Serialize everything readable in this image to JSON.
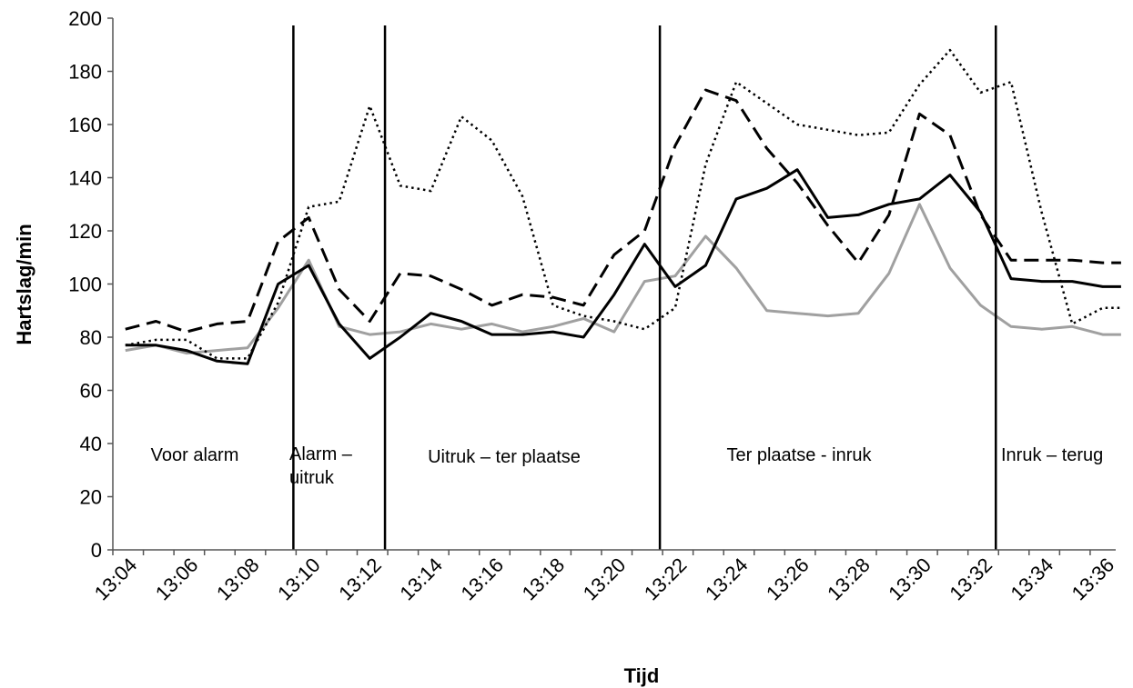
{
  "chart_data": {
    "type": "line",
    "title": "",
    "xlabel": "Tijd",
    "ylabel": "Hartslag/min",
    "ylim": [
      0,
      200
    ],
    "yticks": [
      0,
      20,
      40,
      60,
      80,
      100,
      120,
      140,
      160,
      180,
      200
    ],
    "x_tick_labels": [
      "13:04",
      "13:06",
      "13:08",
      "13:10",
      "13:12",
      "13:14",
      "13:16",
      "13:18",
      "13:20",
      "13:22",
      "13:24",
      "13:26",
      "13:28",
      "13:30",
      "13:32",
      "13:34",
      "13:36"
    ],
    "x": [
      "13:04",
      "13:05",
      "13:06",
      "13:07",
      "13:08",
      "13:09",
      "13:10",
      "13:11",
      "13:12",
      "13:13",
      "13:14",
      "13:15",
      "13:16",
      "13:17",
      "13:18",
      "13:19",
      "13:20",
      "13:21",
      "13:22",
      "13:23",
      "13:24",
      "13:25",
      "13:26",
      "13:27",
      "13:28",
      "13:29",
      "13:30",
      "13:31",
      "13:32",
      "13:33",
      "13:34",
      "13:35",
      "13:36",
      "13:36.6"
    ],
    "grid": false,
    "legend": "none",
    "series": [
      {
        "style": "solid-black",
        "color": "#000000",
        "values": [
          77,
          77,
          75,
          71,
          70,
          100,
          107,
          85,
          72,
          80,
          89,
          86,
          81,
          81,
          82,
          80,
          96,
          115,
          99,
          107,
          132,
          136,
          143,
          125,
          126,
          130,
          132,
          141,
          127,
          102,
          101,
          101,
          99,
          99
        ]
      },
      {
        "style": "solid-gray",
        "color": "#a0a0a0",
        "values": [
          75,
          77,
          74,
          75,
          76,
          91,
          109,
          84,
          81,
          82,
          85,
          83,
          85,
          82,
          84,
          87,
          82,
          101,
          103,
          118,
          106,
          90,
          89,
          88,
          89,
          104,
          130,
          106,
          92,
          84,
          83,
          84,
          81,
          81
        ]
      },
      {
        "style": "dashed-black",
        "color": "#000000",
        "values": [
          83,
          86,
          82,
          85,
          86,
          116,
          125,
          98,
          86,
          104,
          103,
          98,
          92,
          96,
          95,
          92,
          111,
          120,
          152,
          173,
          169,
          151,
          138,
          122,
          108,
          126,
          164,
          156,
          126,
          109,
          109,
          109,
          108,
          108
        ]
      },
      {
        "style": "dotted-black",
        "color": "#000000",
        "values": [
          77,
          79,
          79,
          72,
          72,
          93,
          129,
          131,
          167,
          137,
          135,
          163,
          154,
          133,
          92,
          88,
          86,
          83,
          91,
          145,
          176,
          168,
          160,
          158,
          156,
          157,
          175,
          188,
          172,
          176,
          127,
          85,
          91,
          91
        ]
      }
    ],
    "phase_boundaries": [
      "13:09.5",
      "13:12.5",
      "13:21.5",
      "13:32.5"
    ],
    "phases": [
      {
        "label_lines": [
          "Voor alarm"
        ]
      },
      {
        "label_lines": [
          "Alarm –",
          "uitruk"
        ]
      },
      {
        "label_lines": [
          "Uitruk – ter plaatse"
        ]
      },
      {
        "label_lines": [
          "Ter plaatse - inruk"
        ]
      },
      {
        "label_lines": [
          "Inruk – terug"
        ]
      }
    ]
  }
}
